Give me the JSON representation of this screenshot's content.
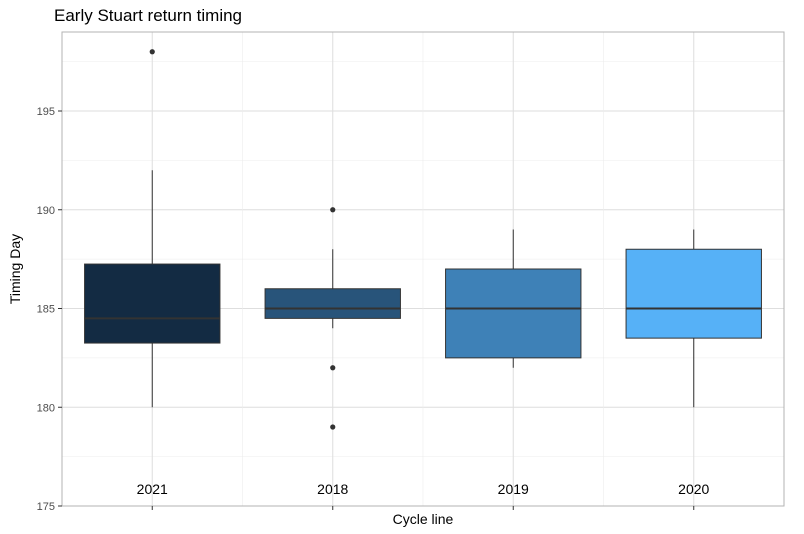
{
  "chart_data": {
    "type": "box",
    "title": "Early Stuart return timing",
    "xlabel": "Cycle line",
    "ylabel": "Timing Day",
    "ylim": [
      175,
      199
    ],
    "yticks": [
      175,
      180,
      185,
      190,
      195
    ],
    "grid": true,
    "legend": "none",
    "categories": [
      "2021",
      "2018",
      "2019",
      "2020"
    ],
    "boxes": [
      {
        "category": "2021",
        "whisker_low": 180,
        "q1": 183.25,
        "median": 184.5,
        "q3": 187.25,
        "whisker_high": 192,
        "outliers": [
          198
        ],
        "color": "#132b43"
      },
      {
        "category": "2018",
        "whisker_low": 184,
        "q1": 184.5,
        "median": 185,
        "q3": 186,
        "whisker_high": 188,
        "outliers": [
          190,
          182,
          179
        ],
        "color": "#28547a"
      },
      {
        "category": "2019",
        "whisker_low": 182,
        "q1": 182.5,
        "median": 185,
        "q3": 187,
        "whisker_high": 189,
        "outliers": [],
        "color": "#3e81b7"
      },
      {
        "category": "2020",
        "whisker_low": 180,
        "q1": 183.5,
        "median": 185,
        "q3": 188,
        "whisker_high": 189,
        "outliers": [],
        "color": "#56b1f7"
      }
    ]
  }
}
